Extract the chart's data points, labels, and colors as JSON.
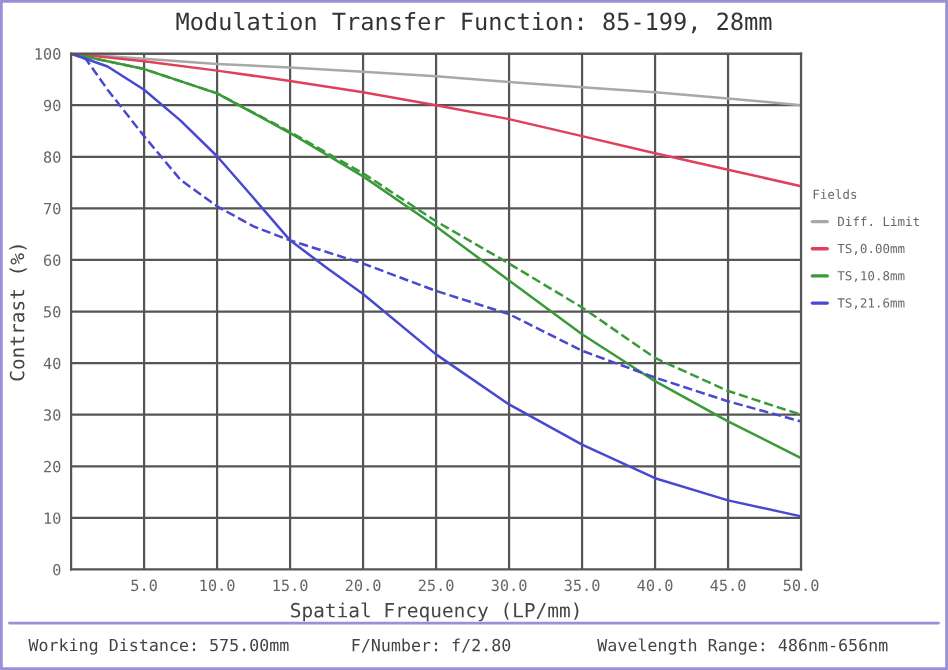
{
  "chart_data": {
    "type": "line",
    "title": "Modulation Transfer Function: 85-199, 28mm",
    "xlabel": "Spatial Frequency (LP/mm)",
    "ylabel": "Contrast (%)",
    "legend_title": "Fields",
    "legend": "right",
    "grid": true,
    "line_style": "solid",
    "marker": "none",
    "x": [
      0,
      5,
      10,
      15,
      20,
      25,
      30,
      35,
      40,
      45,
      50
    ],
    "xlim": [
      0,
      50
    ],
    "ylim": [
      0,
      100
    ],
    "xticks": [
      {
        "value": 5,
        "label": "5.0"
      },
      {
        "value": 10,
        "label": "10.0"
      },
      {
        "value": 15,
        "label": "15.0"
      },
      {
        "value": 20,
        "label": "20.0"
      },
      {
        "value": 25,
        "label": "25.0"
      },
      {
        "value": 30,
        "label": "30.0"
      },
      {
        "value": 35,
        "label": "35.0"
      },
      {
        "value": 40,
        "label": "40.0"
      },
      {
        "value": 45,
        "label": "45.0"
      },
      {
        "value": 50,
        "label": "50.0"
      }
    ],
    "yticks": [
      0,
      10,
      20,
      30,
      40,
      50,
      60,
      70,
      80,
      90,
      100
    ],
    "series": [
      {
        "name": "Diff. Limit",
        "color": "#a8a8a8",
        "values": [
          100,
          99,
          98,
          97.3,
          96.5,
          95.6,
          94.5,
          93.5,
          92.5,
          91.3,
          90
        ]
      },
      {
        "name": "TS,0.00mm",
        "color": "#e0405a",
        "values": [
          100,
          98.5,
          96.7,
          94.7,
          92.5,
          90,
          87.3,
          84,
          80.7,
          77.5,
          74.3
        ]
      },
      {
        "name": "TS,10.8mm",
        "color": "#3a9a3a",
        "values": [
          100,
          97,
          92.3,
          84.6,
          76.2,
          66.5,
          56,
          45.6,
          36.5,
          28.7,
          21.6
        ]
      },
      {
        "color": "#3a9a3a",
        "line_style": "dashed",
        "values": [
          100,
          97,
          92.3,
          84.8,
          76.8,
          67.5,
          59.3,
          50.8,
          41,
          34.6,
          30
        ]
      },
      {
        "name": "TS,21.6mm",
        "color": "#4848d0",
        "x": [
          0,
          2.5,
          5,
          7.5,
          10,
          12.5,
          15,
          17.5,
          20,
          25,
          30,
          35,
          40,
          45,
          50
        ],
        "values": [
          100,
          97.5,
          93,
          87,
          80.1,
          72,
          63.8,
          58.5,
          53.4,
          41.7,
          32,
          24.2,
          17.7,
          13.4,
          10.3
        ]
      },
      {
        "color": "#4848d0",
        "line_style": "dashed",
        "x": [
          0,
          1,
          2.5,
          5,
          7.5,
          10,
          12.5,
          15,
          20,
          25,
          30,
          35,
          40,
          45,
          50
        ],
        "values": [
          100,
          99,
          93,
          84,
          75.5,
          70.4,
          66.5,
          63.8,
          59.3,
          54,
          49.5,
          42.4,
          37.2,
          32.6,
          28.7
        ]
      }
    ],
    "annotations": [
      "Working Distance: 575.00mm",
      "F/Number: f/2.80",
      "Wavelength Range: 486nm-656nm"
    ]
  }
}
